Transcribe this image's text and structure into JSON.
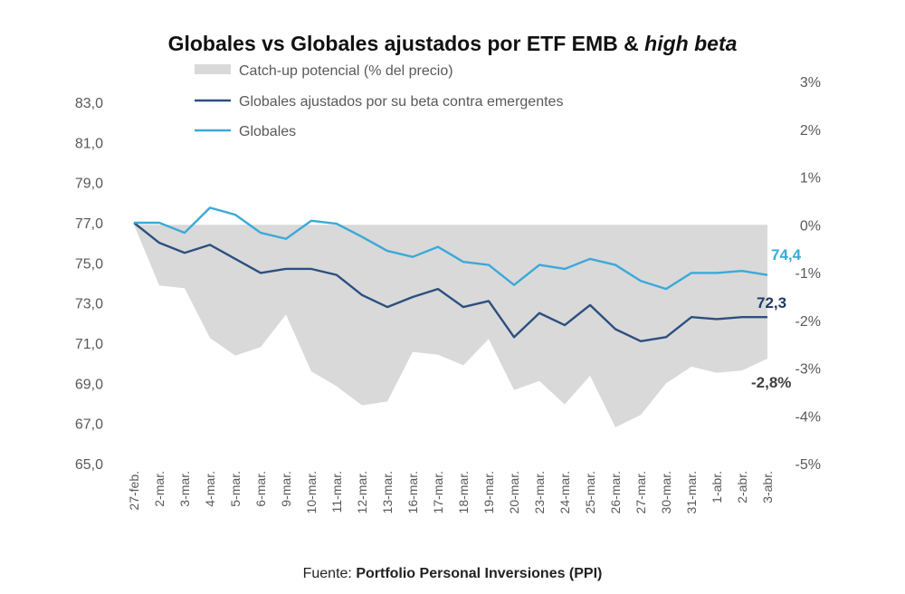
{
  "chart_data": {
    "type": "line",
    "title": "Globales vs Globales ajustados por ETF EMB & ",
    "title_italic": "high beta",
    "source_prefix": "Fuente: ",
    "source": "Portfolio Personal Inversiones (PPI)",
    "legend_placement": "top-left",
    "grid": false,
    "categories": [
      "27-feb.",
      "2-mar.",
      "3-mar.",
      "4-mar.",
      "5-mar.",
      "6-mar.",
      "9-mar.",
      "10-mar.",
      "11-mar.",
      "12-mar.",
      "13-mar.",
      "16-mar.",
      "17-mar.",
      "18-mar.",
      "19-mar.",
      "20-mar.",
      "23-mar.",
      "24-mar.",
      "25-mar.",
      "26-mar.",
      "27-mar.",
      "30-mar.",
      "31-mar.",
      "1-abr.",
      "2-abr.",
      "3-abr."
    ],
    "y_left": {
      "ylim": [
        65,
        83
      ],
      "ticks": [
        "65,0",
        "67,0",
        "69,0",
        "71,0",
        "73,0",
        "75,0",
        "77,0",
        "79,0",
        "81,0",
        "83,0"
      ]
    },
    "y_right": {
      "ylim": [
        -5,
        3
      ],
      "ticks": [
        "-5%",
        "-4%",
        "-3%",
        "-2%",
        "-1%",
        "0%",
        "1%",
        "2%",
        "3%"
      ]
    },
    "series": [
      {
        "name": "Catch-up potencial (% del precio)",
        "type": "area",
        "axis": "right",
        "color": "#d9d9d9",
        "values": [
          0,
          -1.27,
          -1.33,
          -2.37,
          -2.74,
          -2.56,
          -1.88,
          -3.07,
          -3.38,
          -3.78,
          -3.7,
          -2.66,
          -2.72,
          -2.94,
          -2.39,
          -3.46,
          -3.27,
          -3.76,
          -3.16,
          -4.24,
          -3.98,
          -3.32,
          -2.97,
          -3.1,
          -3.05,
          -2.8
        ]
      },
      {
        "name": "Globales ajustados por su beta contra emergentes",
        "type": "line",
        "axis": "left",
        "color": "#2d4f80",
        "values": [
          77.0,
          76.0,
          75.5,
          75.9,
          75.2,
          74.5,
          74.7,
          74.7,
          74.4,
          73.4,
          72.8,
          73.3,
          73.7,
          72.8,
          73.1,
          71.3,
          72.5,
          71.9,
          72.9,
          71.7,
          71.1,
          71.3,
          72.3,
          72.2,
          72.3,
          72.3
        ]
      },
      {
        "name": "Globales",
        "type": "line",
        "axis": "left",
        "color": "#3ba9d9",
        "values": [
          77.0,
          77.0,
          76.5,
          77.75,
          77.4,
          76.5,
          76.2,
          77.1,
          76.95,
          76.3,
          75.6,
          75.3,
          75.8,
          75.05,
          74.9,
          73.9,
          74.9,
          74.7,
          75.2,
          74.9,
          74.1,
          73.7,
          74.5,
          74.5,
          74.6,
          74.4
        ]
      }
    ],
    "data_labels": [
      {
        "text": "74,4",
        "color": "#3ba9d9"
      },
      {
        "text": "72,3",
        "color": "#1f3a66"
      },
      {
        "text": "-2,8%",
        "color": "#404040"
      }
    ]
  }
}
